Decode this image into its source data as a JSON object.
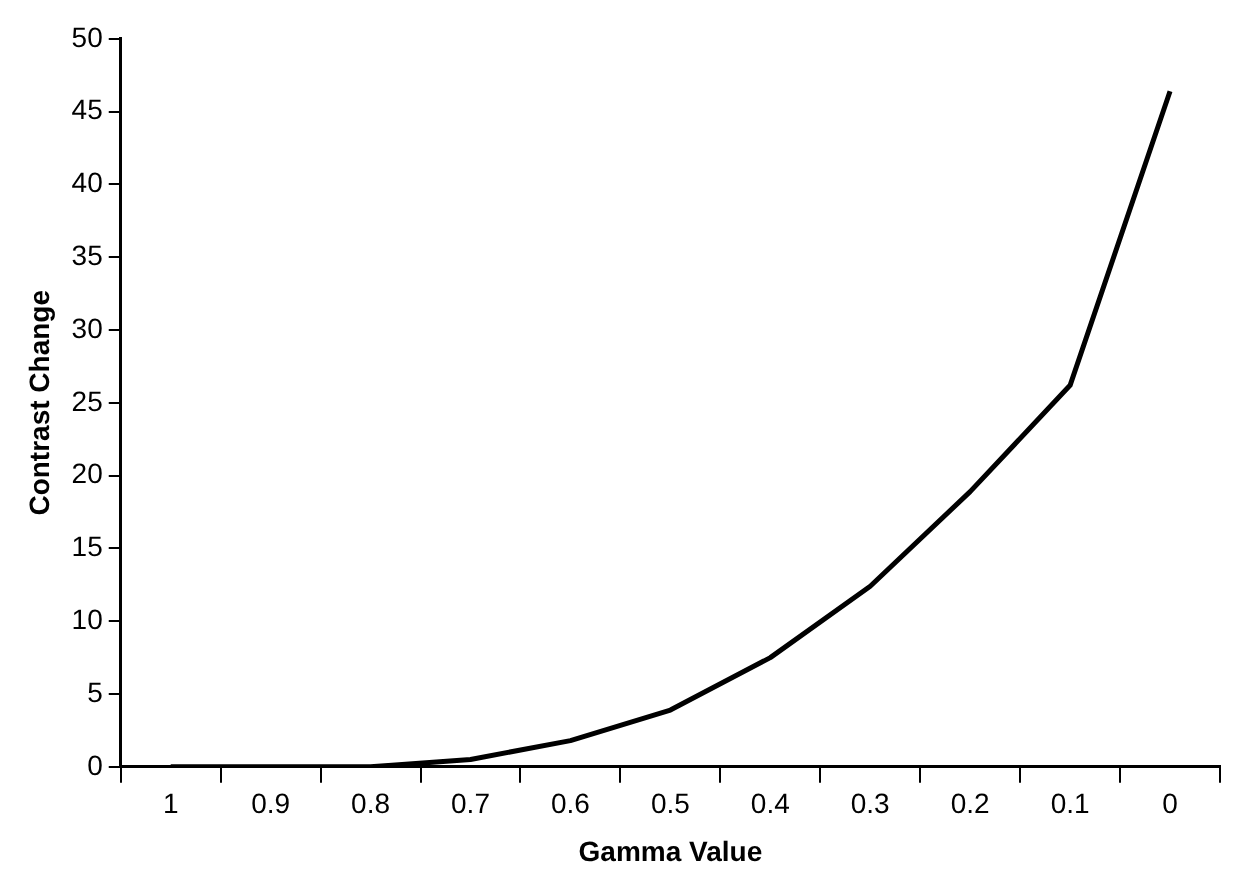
{
  "chart_data": {
    "type": "line",
    "xlabel": "Gamma Value",
    "ylabel": "Contrast Change",
    "categories": [
      "1",
      "0.9",
      "0.8",
      "0.7",
      "0.6",
      "0.5",
      "0.4",
      "0.3",
      "0.2",
      "0.1",
      "0"
    ],
    "series": [
      {
        "color": "#000000",
        "values": [
          0,
          0,
          0,
          0.5,
          1.8,
          3.9,
          7.5,
          12.4,
          18.9,
          26.2,
          46.4
        ]
      }
    ],
    "ylim": [
      0,
      50
    ],
    "yticks": [
      0,
      5,
      10,
      15,
      20,
      25,
      30,
      35,
      40,
      45,
      50
    ],
    "grid": false,
    "legend": false,
    "marker": "none",
    "line_style": "solid"
  }
}
